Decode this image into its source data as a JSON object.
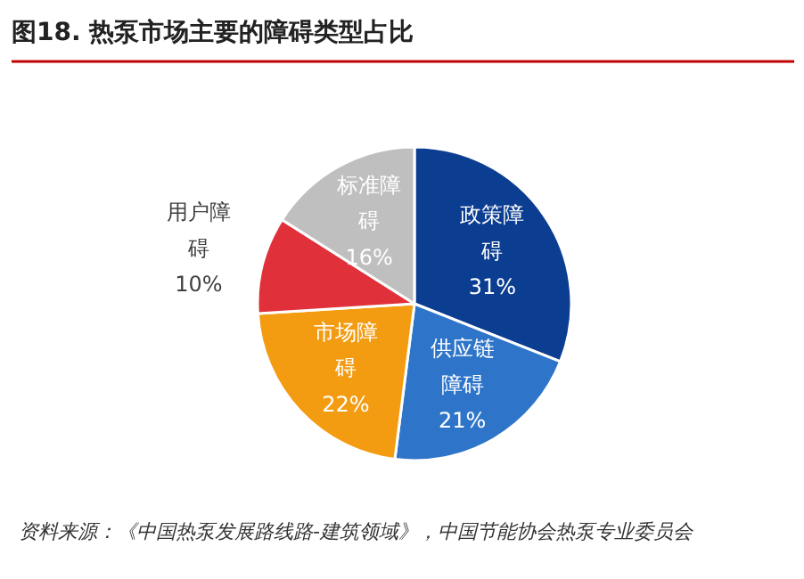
{
  "chart_data": {
    "type": "pie",
    "title": "图18. 热泵市场主要的障碍类型占比",
    "categories": [
      "政策障碍",
      "供应链障碍",
      "市场障碍",
      "用户障碍",
      "标准障碍"
    ],
    "values": [
      31,
      21,
      22,
      10,
      16
    ],
    "value_labels": [
      "31%",
      "21%",
      "22%",
      "10%",
      "16%"
    ],
    "colors": [
      "#0b3d91",
      "#2e75c9",
      "#f39c12",
      "#e0303a",
      "#bfbfbf"
    ],
    "annotations": [
      "资料来源：《中国热泵发展路线路-建筑领域》，中国节能协会热泵专业委员会"
    ]
  }
}
